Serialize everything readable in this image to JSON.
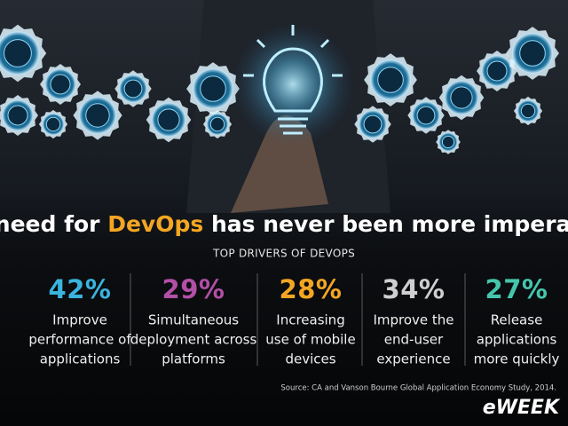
{
  "headline": {
    "before": "The need for ",
    "highlight": "DevOps",
    "after": " has never been more imperative."
  },
  "subtitle": "TOP DRIVERS OF DEVOPS",
  "stats": [
    {
      "percent": "42%",
      "color": "#3ab4de",
      "lines": [
        "Improve",
        "performance of",
        "applications"
      ]
    },
    {
      "percent": "29%",
      "color": "#b24fa6",
      "lines": [
        "Simultaneous",
        "deployment across",
        "platforms"
      ]
    },
    {
      "percent": "28%",
      "color": "#f4a623",
      "lines": [
        "Increasing",
        "use of mobile",
        "devices"
      ]
    },
    {
      "percent": "34%",
      "color": "#cfcfcf",
      "lines": [
        "Improve the",
        "end-user",
        "experience"
      ]
    },
    {
      "percent": "27%",
      "color": "#45c6ac",
      "lines": [
        "Release",
        "applications",
        "more quickly"
      ]
    }
  ],
  "highlight_color": "#f4a623",
  "source": "Source: CA and Vanson Bourne Global Application Economy Study, 2014.",
  "logo": "eWEEK"
}
